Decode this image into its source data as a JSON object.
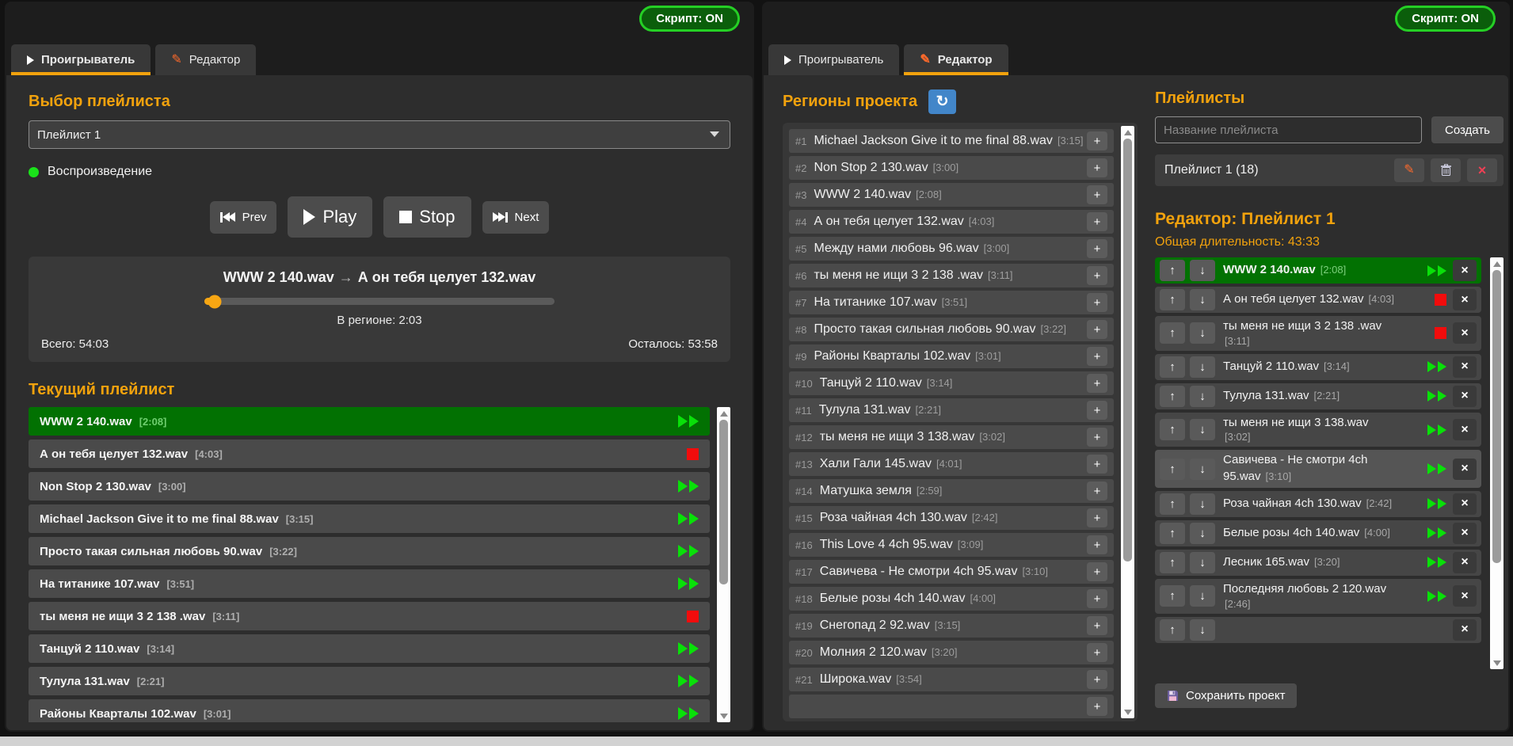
{
  "script_toggle": {
    "label": "Скрипт: ON"
  },
  "tabs": {
    "player": "Проигрыватель",
    "editor": "Редактор"
  },
  "symbols": {
    "add": "+",
    "up": "↑",
    "down": "↓",
    "remove": "×",
    "refresh": "↻",
    "pencil": "✎"
  },
  "player_panel": {
    "select_heading": "Выбор плейлиста",
    "playlist_value": "Плейлист 1",
    "status": "Воспроизведение",
    "transport": {
      "prev": "Prev",
      "play": "Play",
      "stop": "Stop",
      "next": "Next"
    },
    "now_playing": {
      "current": "WWW 2 140.wav",
      "arrow": "→",
      "next_track": "А он тебя целует 132.wav",
      "region": "В регионе: 2:03",
      "total": "Всего: 54:03",
      "remaining": "Осталось: 53:58",
      "progress_pct": 3
    },
    "list_heading": "Текущий плейлист",
    "tracks": [
      {
        "name": "WWW 2 140.wav",
        "dur": "[2:08]",
        "icon": "play",
        "playing": true
      },
      {
        "name": "А он тебя целует 132.wav",
        "dur": "[4:03]",
        "icon": "stop"
      },
      {
        "name": "Non Stop 2 130.wav",
        "dur": "[3:00]",
        "icon": "play"
      },
      {
        "name": "Michael Jackson Give it to me final 88.wav",
        "dur": "[3:15]",
        "icon": "play"
      },
      {
        "name": "Просто такая сильная любовь 90.wav",
        "dur": "[3:22]",
        "icon": "play"
      },
      {
        "name": "На титанике 107.wav",
        "dur": "[3:51]",
        "icon": "play"
      },
      {
        "name": "ты меня не ищи 3 2 138 .wav",
        "dur": "[3:11]",
        "icon": "stop"
      },
      {
        "name": "Танцуй 2 110.wav",
        "dur": "[3:14]",
        "icon": "play"
      },
      {
        "name": "Тулула 131.wav",
        "dur": "[2:21]",
        "icon": "play"
      },
      {
        "name": "Районы Кварталы 102.wav",
        "dur": "[3:01]",
        "icon": "play"
      }
    ]
  },
  "editor_panel": {
    "regions_heading": "Регионы проекта",
    "regions": [
      {
        "num": "#1",
        "name": "Michael Jackson Give it to me final 88.wav",
        "dur": "[3:15]"
      },
      {
        "num": "#2",
        "name": "Non Stop 2 130.wav",
        "dur": "[3:00]"
      },
      {
        "num": "#3",
        "name": "WWW 2 140.wav",
        "dur": "[2:08]"
      },
      {
        "num": "#4",
        "name": "А он тебя целует 132.wav",
        "dur": "[4:03]"
      },
      {
        "num": "#5",
        "name": "Между нами любовь 96.wav",
        "dur": "[3:00]"
      },
      {
        "num": "#6",
        "name": "ты меня не ищи 3 2 138 .wav",
        "dur": "[3:11]"
      },
      {
        "num": "#7",
        "name": "На титанике 107.wav",
        "dur": "[3:51]"
      },
      {
        "num": "#8",
        "name": "Просто такая сильная любовь 90.wav",
        "dur": "[3:22]"
      },
      {
        "num": "#9",
        "name": "Районы Кварталы 102.wav",
        "dur": "[3:01]"
      },
      {
        "num": "#10",
        "name": "Танцуй 2 110.wav",
        "dur": "[3:14]"
      },
      {
        "num": "#11",
        "name": "Тулула 131.wav",
        "dur": "[2:21]"
      },
      {
        "num": "#12",
        "name": "ты меня не ищи 3 138.wav",
        "dur": "[3:02]"
      },
      {
        "num": "#13",
        "name": "Хали Гали 145.wav",
        "dur": "[4:01]"
      },
      {
        "num": "#14",
        "name": "Матушка земля",
        "dur": "[2:59]"
      },
      {
        "num": "#15",
        "name": "Роза чайная 4ch 130.wav",
        "dur": "[2:42]"
      },
      {
        "num": "#16",
        "name": "This Love 4 4ch 95.wav",
        "dur": "[3:09]"
      },
      {
        "num": "#17",
        "name": "Савичева - Не смотри 4ch 95.wav",
        "dur": "[3:10]"
      },
      {
        "num": "#18",
        "name": "Белые розы 4ch 140.wav",
        "dur": "[4:00]"
      },
      {
        "num": "#19",
        "name": "Снегопад 2 92.wav",
        "dur": "[3:15]"
      },
      {
        "num": "#20",
        "name": "Молния 2 120.wav",
        "dur": "[3:20]"
      },
      {
        "num": "#21",
        "name": "Широка.wav",
        "dur": "[3:54]"
      },
      {
        "num": "",
        "name": "",
        "dur": ""
      }
    ],
    "playlists_heading": "Плейлисты",
    "name_placeholder": "Название плейлиста",
    "create_label": "Создать",
    "playlist_item": "Плейлист 1 (18)",
    "editor_heading": "Редактор: Плейлист 1",
    "total_duration": "Общая длительность: 43:33",
    "items": [
      {
        "name": "WWW 2 140.wav",
        "dur": "[2:08]",
        "icon": "play",
        "playing": true
      },
      {
        "name": "А он тебя целует 132.wav",
        "dur": "[4:03]",
        "icon": "stop"
      },
      {
        "name": "ты меня не ищи 3 2 138 .wav",
        "dur": "[3:11]",
        "icon": "stop",
        "two_line": true
      },
      {
        "name": "Танцуй 2 110.wav",
        "dur": "[3:14]",
        "icon": "play"
      },
      {
        "name": "Тулула 131.wav",
        "dur": "[2:21]",
        "icon": "play"
      },
      {
        "name": "ты меня не ищи 3 138.wav",
        "dur": "[3:02]",
        "icon": "play",
        "two_line": true
      },
      {
        "name": "Савичева - Не смотри 4ch 95.wav",
        "dur": "[3:10]",
        "icon": "play",
        "alt": true,
        "wrap_name": true
      },
      {
        "name": "Роза чайная 4ch 130.wav",
        "dur": "[2:42]",
        "icon": "play"
      },
      {
        "name": "Белые розы 4ch 140.wav",
        "dur": "[4:00]",
        "icon": "play"
      },
      {
        "name": "Лесник 165.wav",
        "dur": "[3:20]",
        "icon": "play"
      },
      {
        "name": "Последняя любовь 2 120.wav",
        "dur": "[2:46]",
        "icon": "play",
        "two_line": true
      },
      {
        "name": "",
        "dur": "",
        "icon": "none"
      }
    ],
    "save_label": "Сохранить проект"
  }
}
